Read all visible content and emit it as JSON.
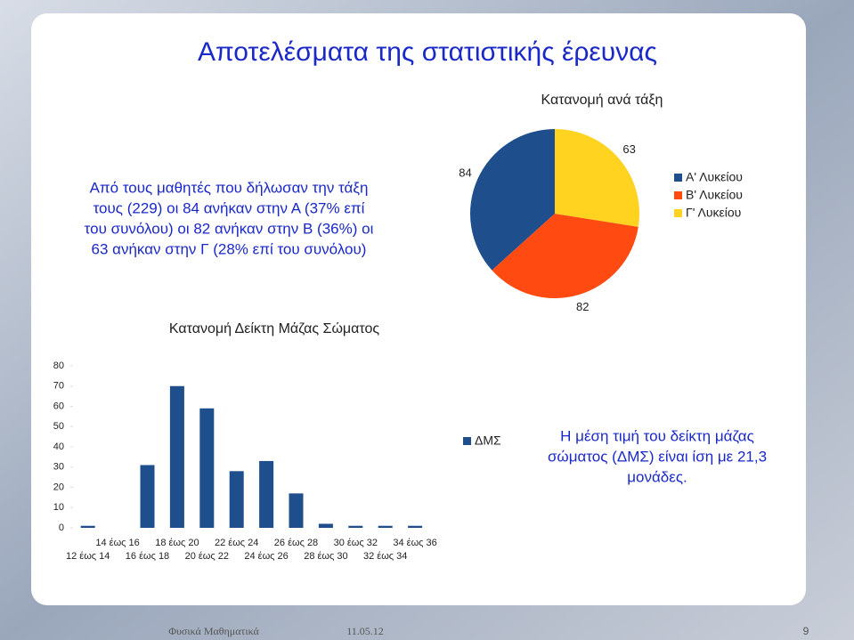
{
  "slide": {
    "title": "Αποτελέσματα της στατιστικής έρευνας",
    "intro_lines": [
      "Από τους μαθητές που δήλωσαν την τάξη",
      "τους (229) οι 84 ανήκαν στην Α (37% επί",
      "του συνόλου) οι 82 ανήκαν στην Β (36%) οι",
      "63 ανήκαν στην Γ (28% επί του συνόλου)"
    ],
    "note_lines": [
      "Η μέση τιμή του δείκτη μάζας",
      "σώματος (ΔΜΣ) είναι ίση με 21,3",
      "μονάδες."
    ],
    "footer": "Φυσικά Μαθηματικά",
    "date": "11.05.12",
    "page": "9"
  },
  "chart_data": [
    {
      "type": "pie",
      "title": "Κατανομή ανά τάξη",
      "categories": [
        "Α' Λυκείου",
        "Β' Λυκείου",
        "Γ' Λυκείου"
      ],
      "values": [
        84,
        82,
        63
      ],
      "colors": [
        "#1f4e8c",
        "#ff4a12",
        "#ffd320"
      ]
    },
    {
      "type": "bar",
      "title": "Κατανομή Δείκτη Μάζας Σώματος",
      "categories": [
        "12 έως 14",
        "14 έως 16",
        "16 έως 18",
        "18 έως 20",
        "20 έως 22",
        "22 έως 24",
        "24 έως 26",
        "26 έως 28",
        "28 έως 30",
        "30 έως 32",
        "32 έως 34",
        "34 έως 36"
      ],
      "series": [
        {
          "name": "ΔΜΣ",
          "color": "#1f4e8c",
          "values": [
            1,
            0,
            31,
            70,
            59,
            28,
            33,
            17,
            2,
            1,
            1,
            1
          ]
        }
      ],
      "ylim": [
        0,
        80
      ],
      "yticks": [
        0,
        10,
        20,
        30,
        40,
        50,
        60,
        70,
        80
      ]
    }
  ]
}
